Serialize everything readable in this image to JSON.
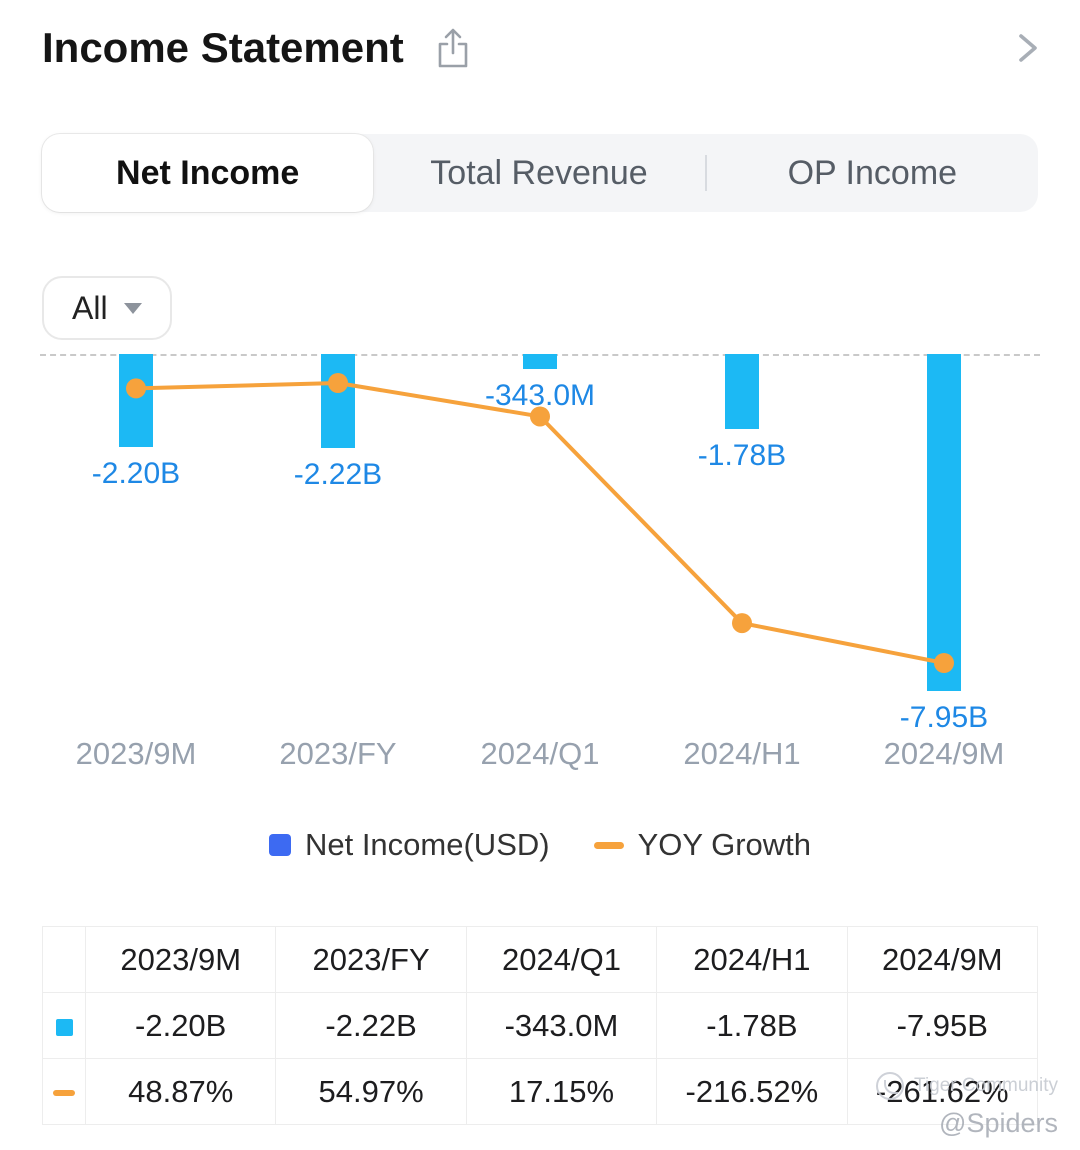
{
  "header": {
    "title": "Income Statement"
  },
  "icons": {
    "share": "share-icon",
    "chevron": "chevron-right-icon",
    "caret": "caret-down-icon"
  },
  "tabs": [
    {
      "label": "Net Income",
      "active": true
    },
    {
      "label": "Total Revenue",
      "active": false
    },
    {
      "label": "OP Income",
      "active": false
    }
  ],
  "filter": {
    "label": "All"
  },
  "chart_data": {
    "type": "bar+line",
    "categories": [
      "2023/9M",
      "2023/FY",
      "2024/Q1",
      "2024/H1",
      "2024/9M"
    ],
    "series": [
      {
        "name": "Net Income(USD)",
        "type": "bar",
        "unit": "USD billions",
        "values_billions": [
          -2.2,
          -2.22,
          -0.343,
          -1.78,
          -7.95
        ],
        "labels": [
          "-2.20B",
          "-2.22B",
          "-343.0M",
          "-1.78B",
          "-7.95B"
        ]
      },
      {
        "name": "YOY Growth",
        "type": "line",
        "unit": "%",
        "values_percent": [
          48.87,
          54.97,
          17.15,
          -216.52,
          -261.62
        ],
        "labels": [
          "48.87%",
          "54.97%",
          "17.15%",
          "-216.52%",
          "-261.62%"
        ]
      }
    ],
    "zero_line": "dashed",
    "bar_color": "#1cb9f4",
    "line_color": "#f6a23c",
    "bar_label_color": "#1e88e5",
    "axis_label_color": "#97a1ae"
  },
  "legend": [
    {
      "label": "Net Income(USD)",
      "swatch": "#3d6af2",
      "shape": "square"
    },
    {
      "label": "YOY Growth",
      "swatch": "#f6a23c",
      "shape": "dash"
    }
  ],
  "table": {
    "headers": [
      "",
      "2023/9M",
      "2023/FY",
      "2024/Q1",
      "2024/H1",
      "2024/9M"
    ],
    "rows": [
      {
        "series": "Net Income(USD)",
        "swatch_color": "#1cb9f4",
        "swatch_shape": "square",
        "values": [
          "-2.20B",
          "-2.22B",
          "-343.0M",
          "-1.78B",
          "-7.95B"
        ],
        "value_classes": [
          "",
          "",
          "",
          "",
          ""
        ]
      },
      {
        "series": "YOY Growth",
        "swatch_color": "#f6a23c",
        "swatch_shape": "dash",
        "values": [
          "48.87%",
          "54.97%",
          "17.15%",
          "-216.52%",
          "-261.62%"
        ],
        "value_classes": [
          "pos",
          "pos",
          "pos",
          "neg",
          "neg"
        ]
      }
    ]
  },
  "watermark": {
    "brand": "Tiger Community",
    "user": "@Spiders"
  }
}
